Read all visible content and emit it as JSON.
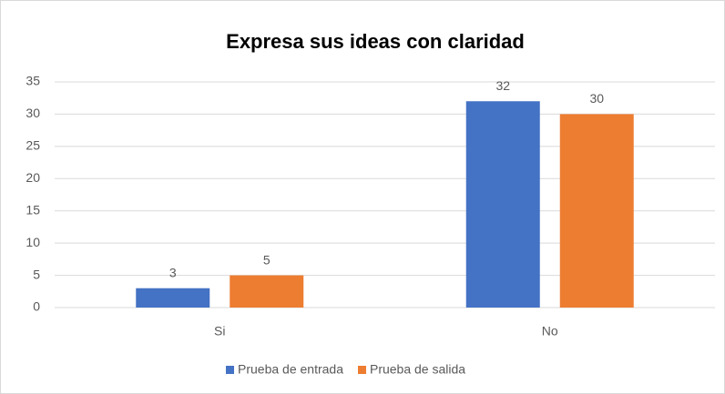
{
  "chart_data": {
    "type": "bar",
    "title": "Expresa sus ideas con claridad",
    "categories": [
      "Si",
      "No"
    ],
    "series": [
      {
        "name": "Prueba de entrada",
        "color": "#4472c4",
        "values": [
          3,
          32
        ]
      },
      {
        "name": "Prueba de salida",
        "color": "#ed7d31",
        "values": [
          5,
          30
        ]
      }
    ],
    "ylim": [
      0,
      35
    ],
    "yticks": [
      0,
      5,
      10,
      15,
      20,
      25,
      30,
      35
    ],
    "grid": true,
    "legend": "bottom"
  }
}
